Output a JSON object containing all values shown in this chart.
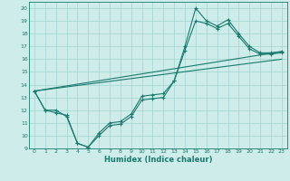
{
  "background_color": "#ceecea",
  "grid_color": "#a8d8d4",
  "line_color": "#1a7a6e",
  "xlim": [
    -0.5,
    23.5
  ],
  "ylim": [
    9,
    20.5
  ],
  "xticks": [
    0,
    1,
    2,
    3,
    4,
    5,
    6,
    7,
    8,
    9,
    10,
    11,
    12,
    13,
    14,
    15,
    16,
    17,
    18,
    19,
    20,
    21,
    22,
    23
  ],
  "yticks": [
    9,
    10,
    11,
    12,
    13,
    14,
    15,
    16,
    17,
    18,
    19,
    20
  ],
  "xlabel": "Humidex (Indice chaleur)",
  "line1_x": [
    0,
    1,
    2,
    3,
    4,
    5,
    6,
    7,
    8,
    9,
    10,
    11,
    12,
    13,
    14,
    15,
    16,
    17,
    18,
    19,
    20,
    21,
    22,
    23
  ],
  "line1_y": [
    13.5,
    12.0,
    11.8,
    11.6,
    9.4,
    9.1,
    10.2,
    11.0,
    11.1,
    11.7,
    13.1,
    13.2,
    13.3,
    14.3,
    17.0,
    20.0,
    19.0,
    18.6,
    19.1,
    18.0,
    17.0,
    16.5,
    16.5,
    16.6
  ],
  "line2_x": [
    0,
    1,
    2,
    3,
    4,
    5,
    6,
    7,
    8,
    9,
    10,
    11,
    12,
    13,
    14,
    15,
    16,
    17,
    18,
    19,
    20,
    21,
    22,
    23
  ],
  "line2_y": [
    13.5,
    12.0,
    12.0,
    11.5,
    9.4,
    9.1,
    10.0,
    10.8,
    10.9,
    11.5,
    12.8,
    12.9,
    13.0,
    14.3,
    16.7,
    19.0,
    18.8,
    18.4,
    18.8,
    17.8,
    16.8,
    16.4,
    16.4,
    16.5
  ],
  "line3_x": [
    0,
    23
  ],
  "line3_y": [
    13.5,
    16.6
  ],
  "line4_x": [
    0,
    23
  ],
  "line4_y": [
    13.5,
    16.0
  ]
}
